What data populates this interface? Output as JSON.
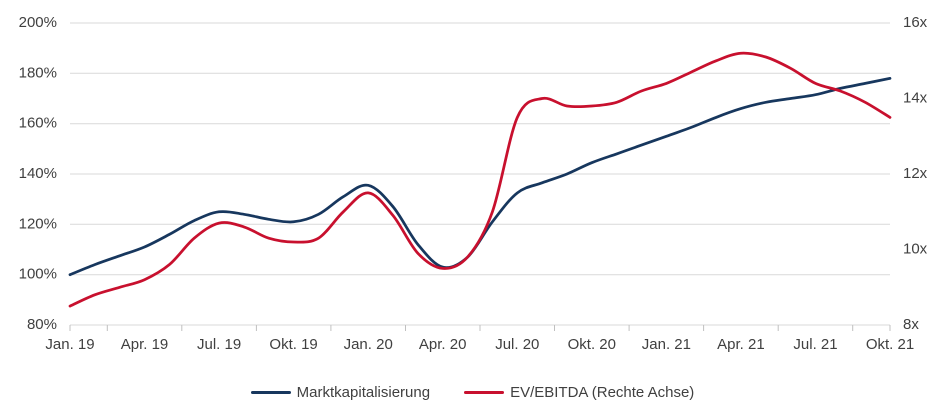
{
  "chart_data": {
    "type": "line",
    "title": "",
    "xlabel": "",
    "ylabel_left": "",
    "ylabel_right": "",
    "grid": "horizontal",
    "legend_position": "bottom",
    "x_tick_labels": [
      "Jan. 19",
      "Apr. 19",
      "Jul. 19",
      "Okt. 19",
      "Jan. 20",
      "Apr. 20",
      "Jul. 20",
      "Okt. 20",
      "Jan. 21",
      "Apr. 21",
      "Jul. 21",
      "Okt. 21"
    ],
    "x": [
      "Jan. 19",
      "Feb. 19",
      "Mär. 19",
      "Apr. 19",
      "Mai 19",
      "Jun. 19",
      "Jul. 19",
      "Aug. 19",
      "Sep. 19",
      "Okt. 19",
      "Nov. 19",
      "Dez. 19",
      "Jan. 20",
      "Feb. 20",
      "Mär. 20",
      "Apr. 20",
      "Mai 20",
      "Jun. 20",
      "Jul. 20",
      "Aug. 20",
      "Sep. 20",
      "Okt. 20",
      "Nov. 20",
      "Dez. 20",
      "Jan. 21",
      "Feb. 21",
      "Mär. 21",
      "Apr. 21",
      "Mai 21",
      "Jun. 21",
      "Jul. 21",
      "Aug. 21",
      "Sep. 21",
      "Okt. 21"
    ],
    "left_axis": {
      "min": 80,
      "max": 200,
      "step": 20,
      "unit": "%",
      "tick_labels": [
        "200%",
        "180%",
        "160%",
        "140%",
        "120%",
        "100%",
        "80%"
      ]
    },
    "right_axis": {
      "min": 8,
      "max": 16,
      "step": 2,
      "unit": "x",
      "tick_labels": [
        "16x",
        "14x",
        "12x",
        "10x",
        "8x"
      ]
    },
    "series": [
      {
        "name": "Marktkapitalisierung",
        "axis": "left",
        "unit": "%",
        "color": "#17375e",
        "values": [
          100,
          104,
          107.5,
          111,
          116,
          121.5,
          125,
          124,
          122,
          121,
          124,
          131,
          135.5,
          127,
          112,
          103,
          107,
          121,
          132.5,
          136.5,
          140,
          144.5,
          148,
          151.5,
          155,
          158.5,
          162.5,
          166,
          168.5,
          170,
          171.5,
          174,
          176,
          178
        ]
      },
      {
        "name": "EV/EBITDA (Rechte Achse)",
        "axis": "right",
        "unit": "x",
        "color": "#c8102e",
        "values": [
          8.5,
          8.8,
          9.0,
          9.2,
          9.6,
          10.3,
          10.7,
          10.6,
          10.3,
          10.2,
          10.3,
          11.0,
          11.5,
          10.9,
          9.9,
          9.5,
          9.8,
          11.0,
          13.5,
          14.0,
          13.8,
          13.8,
          13.9,
          14.2,
          14.4,
          14.7,
          15.0,
          15.2,
          15.1,
          14.8,
          14.4,
          14.2,
          13.9,
          13.5
        ]
      }
    ]
  },
  "colors": {
    "grid": "#d9d9d9",
    "axis_line": "#c0c0c0",
    "tick": "#c0c0c0",
    "text": "#404040",
    "marktkapitalisierung": "#17375e",
    "ev_ebitda": "#c8102e"
  },
  "legend": {
    "items": [
      {
        "label": "Marktkapitalisierung"
      },
      {
        "label": "EV/EBITDA (Rechte Achse)"
      }
    ]
  }
}
